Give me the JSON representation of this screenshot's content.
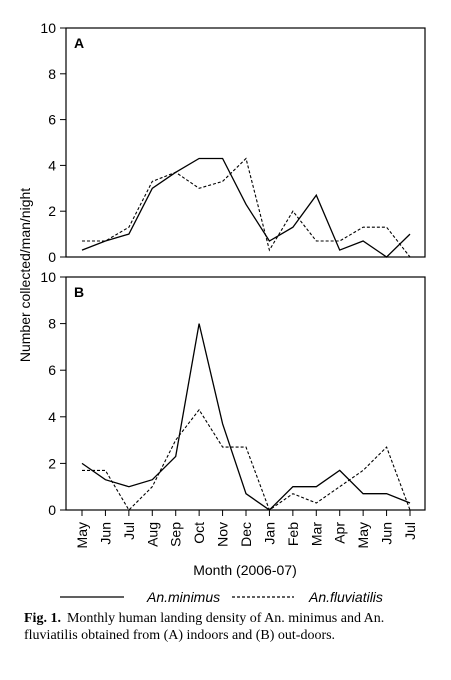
{
  "chart_data": {
    "type": "line",
    "xlabel": "Month  (2006-07)",
    "ylabel": "Number collected/man/night",
    "x": [
      "May",
      "Jun",
      "Jul",
      "Aug",
      "Sep",
      "Oct",
      "Nov",
      "Dec",
      "Jan",
      "Feb",
      "Mar",
      "Apr",
      "May",
      "Jun",
      "Jul"
    ],
    "ylim": [
      0,
      10
    ],
    "yticks": [
      0,
      2,
      4,
      6,
      8,
      10
    ],
    "grid": false,
    "legend": "bottom",
    "panels": [
      {
        "label": "A",
        "series": [
          {
            "name": "An.minimus",
            "style": "solid",
            "values": [
              0.3,
              0.7,
              1.0,
              3.0,
              3.7,
              4.3,
              4.3,
              2.3,
              0.7,
              1.3,
              2.7,
              0.3,
              0.7,
              0.0,
              1.0
            ]
          },
          {
            "name": "An.fluviatilis",
            "style": "dashed",
            "values": [
              0.7,
              0.7,
              1.3,
              3.3,
              3.7,
              3.0,
              3.3,
              4.3,
              0.3,
              2.0,
              0.7,
              0.7,
              1.3,
              1.3,
              0.0
            ]
          }
        ]
      },
      {
        "label": "B",
        "series": [
          {
            "name": "An.minimus",
            "style": "solid",
            "values": [
              2.0,
              1.3,
              1.0,
              1.3,
              2.3,
              8.0,
              3.7,
              0.7,
              0.0,
              1.0,
              1.0,
              1.7,
              0.7,
              0.7,
              0.3
            ]
          },
          {
            "name": "An.fluviatilis",
            "style": "dashed",
            "values": [
              1.7,
              1.7,
              0.0,
              1.0,
              3.0,
              4.3,
              2.7,
              2.7,
              0.0,
              0.7,
              0.3,
              1.0,
              1.7,
              2.7,
              0.0
            ]
          }
        ]
      }
    ]
  },
  "legend": {
    "solid_label": "An.minimus",
    "dashed_label": "An.fluviatilis"
  },
  "caption": {
    "fig_label": "Fig. 1.",
    "text": "Monthly human landing density of An. minimus and An. fluviatilis obtained from (A) indoors and (B) out-doors."
  }
}
